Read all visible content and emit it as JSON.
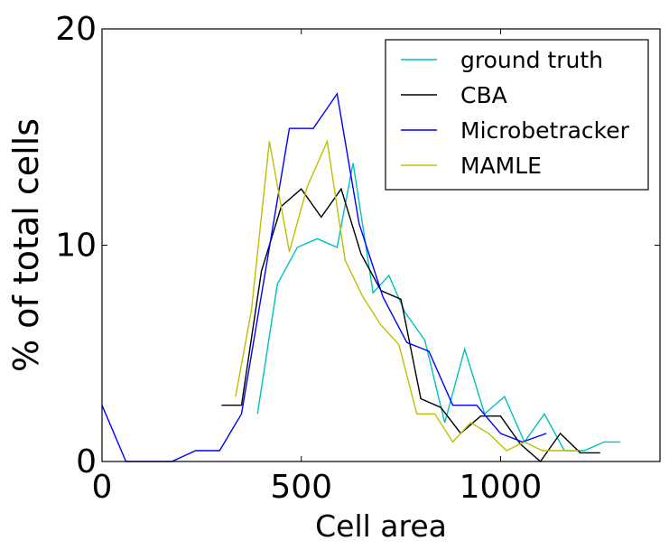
{
  "chart_data": {
    "type": "line",
    "xlabel": "Cell area",
    "ylabel": "% of total cells",
    "xlim": [
      0,
      1400
    ],
    "ylim": [
      0,
      20
    ],
    "xticks": [
      0,
      500,
      1000
    ],
    "yticks": [
      0,
      10,
      20
    ],
    "xtick_labels": [
      "0",
      "500",
      "1000"
    ],
    "ytick_labels": [
      "0",
      "10",
      "20"
    ],
    "grid": false,
    "legend_position": "top-right",
    "series": [
      {
        "name": "ground truth",
        "color": "#00bfbf",
        "x": [
          390,
          440,
          490,
          540,
          590,
          630,
          680,
          720,
          760,
          810,
          860,
          910,
          960,
          1010,
          1060,
          1110,
          1160,
          1210,
          1260,
          1300
        ],
        "y": [
          2.2,
          8.2,
          9.9,
          10.3,
          9.9,
          13.8,
          7.8,
          8.6,
          6.9,
          5.6,
          1.8,
          5.2,
          2.2,
          3.0,
          0.9,
          2.2,
          0.5,
          0.5,
          0.9,
          0.9
        ]
      },
      {
        "name": "CBA",
        "color": "#000000",
        "x": [
          300,
          350,
          400,
          450,
          500,
          550,
          600,
          650,
          700,
          750,
          800,
          850,
          900,
          950,
          1000,
          1050,
          1100,
          1150,
          1200,
          1250
        ],
        "y": [
          2.6,
          2.6,
          8.8,
          11.8,
          12.6,
          11.3,
          12.6,
          9.6,
          7.9,
          7.5,
          2.9,
          2.5,
          1.3,
          2.1,
          2.1,
          0.8,
          0.0,
          1.3,
          0.4,
          0.4
        ]
      },
      {
        "name": "Microbetracker",
        "color": "#0000ff",
        "x": [
          0,
          60,
          120,
          175,
          235,
          295,
          350,
          410,
          470,
          530,
          590,
          645,
          705,
          765,
          820,
          880,
          940,
          1000,
          1055,
          1115
        ],
        "y": [
          2.6,
          0.0,
          0.0,
          0.0,
          0.5,
          0.5,
          2.2,
          8.8,
          15.4,
          15.4,
          17.0,
          11.0,
          7.6,
          5.5,
          5.1,
          2.6,
          2.6,
          1.3,
          0.9,
          1.3
        ]
      },
      {
        "name": "MAMLE",
        "color": "#bfbf00",
        "x": [
          335,
          375,
          420,
          470,
          515,
          565,
          610,
          655,
          700,
          745,
          790,
          835,
          880,
          925,
          970,
          1015,
          1060,
          1105,
          1150,
          1195
        ],
        "y": [
          3.0,
          7.0,
          14.8,
          9.7,
          12.7,
          14.8,
          9.3,
          7.6,
          6.3,
          5.4,
          2.2,
          2.2,
          0.9,
          1.8,
          1.3,
          0.5,
          0.9,
          0.5,
          0.5,
          0.5
        ]
      }
    ]
  }
}
